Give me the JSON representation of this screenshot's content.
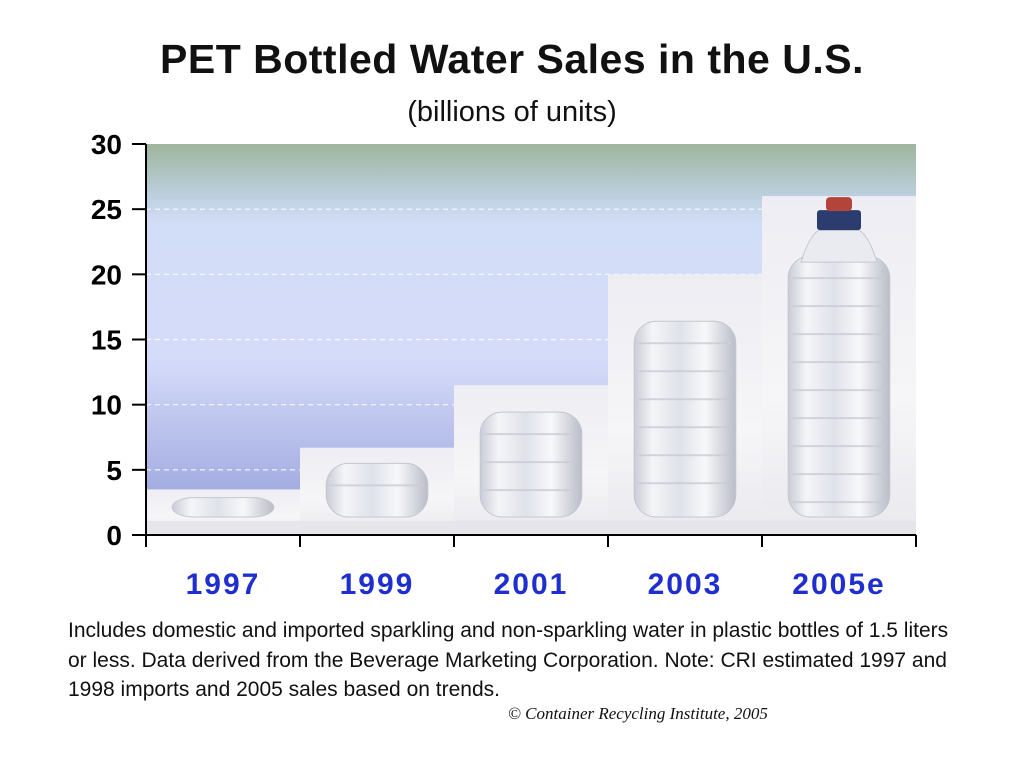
{
  "chart_data": {
    "type": "bar",
    "title": "PET Bottled Water Sales in the U.S.",
    "subtitle": "(billions of units)",
    "categories": [
      "1997",
      "1999",
      "2001",
      "2003",
      "2005e"
    ],
    "values": [
      3.5,
      6.7,
      11.5,
      20.0,
      26.0
    ],
    "ylim": [
      0,
      30
    ],
    "yticks": [
      "0",
      "5",
      "10",
      "15",
      "20",
      "25",
      "30"
    ],
    "xlabel": "",
    "ylabel": "",
    "grid": true,
    "bar_style": "water bottle images",
    "colors": {
      "background_top": "#9fb59d",
      "background_bottom": "#8f98d0",
      "category_label": "#1f2fcf",
      "gridline": "#ffffff"
    }
  },
  "footnote": "Includes domestic and imported sparkling and non-sparkling water in plastic bottles of 1.5 liters or less.  Data derived from the Beverage Marketing Corporation. Note: CRI estimated 1997 and 1998 imports and 2005 sales based on trends.",
  "credit": "© Container Recycling Institute, 2005"
}
